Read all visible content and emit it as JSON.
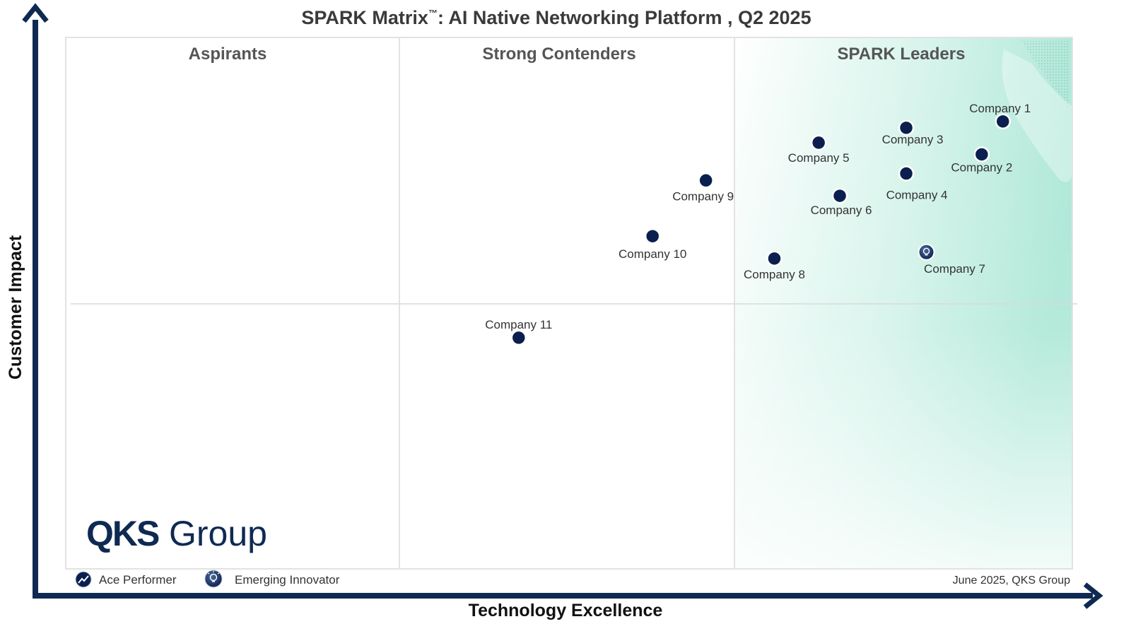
{
  "chart_data": {
    "type": "scatter",
    "title": "SPARK Matrix",
    "title_tm": "™",
    "title_rest": ": AI Native Networking Platform , Q2 2025",
    "xlabel": "Technology Excellence",
    "ylabel": "Customer Impact",
    "xlim": [
      0,
      100
    ],
    "ylim": [
      0,
      100
    ],
    "quadrants": [
      "Aspirants",
      "Strong Contenders",
      "SPARK Leaders"
    ],
    "points": [
      {
        "name": "Company 1",
        "x": 93.1,
        "y": 84.2,
        "type": "ace",
        "label_pos": "above"
      },
      {
        "name": "Company 2",
        "x": 91.0,
        "y": 78.0,
        "type": "ace",
        "label_pos": "below"
      },
      {
        "name": "Company 3",
        "x": 83.5,
        "y": 83.0,
        "type": "ace",
        "label_pos": "below"
      },
      {
        "name": "Company 4",
        "x": 83.5,
        "y": 74.4,
        "type": "ace",
        "label_pos": "below"
      },
      {
        "name": "Company 5",
        "x": 74.8,
        "y": 80.2,
        "type": "ace",
        "label_pos": "below"
      },
      {
        "name": "Company 6",
        "x": 76.9,
        "y": 70.2,
        "type": "ace",
        "label_pos": "below"
      },
      {
        "name": "Company 7",
        "x": 85.5,
        "y": 59.6,
        "type": "emerging",
        "label_pos": "below"
      },
      {
        "name": "Company 8",
        "x": 70.4,
        "y": 58.4,
        "type": "ace",
        "label_pos": "below"
      },
      {
        "name": "Company 9",
        "x": 63.6,
        "y": 73.1,
        "type": "ace",
        "label_pos": "below"
      },
      {
        "name": "Company 10",
        "x": 58.3,
        "y": 62.6,
        "type": "ace",
        "label_pos": "below"
      },
      {
        "name": "Company 11",
        "x": 45.0,
        "y": 43.5,
        "type": "ace",
        "label_pos": "above"
      }
    ],
    "legend": [
      {
        "type": "ace",
        "label": "Ace Performer"
      },
      {
        "type": "emerging",
        "label": "Emerging Innovator"
      }
    ],
    "source": "June 2025, QKS Group"
  },
  "logo": {
    "bold": "QKS",
    "light": "Group"
  },
  "colors": {
    "navy": "#0b1f4f",
    "axis": "#0f2a52",
    "leaders_tint": "#a8e6d4",
    "grid": "#d9d9d9"
  }
}
